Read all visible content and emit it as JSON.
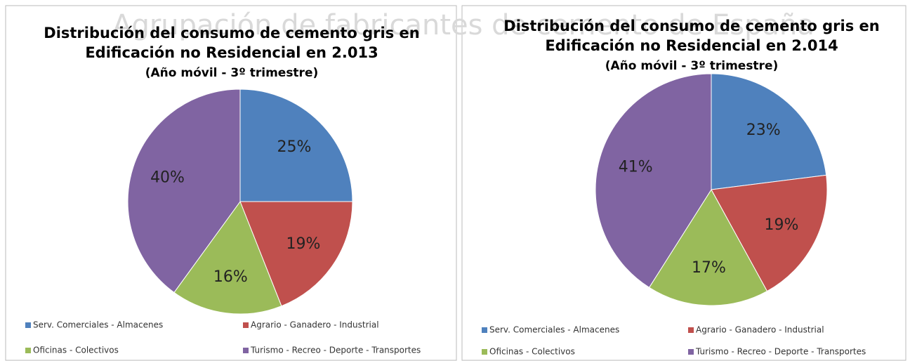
{
  "watermark": "Agrupación de fabricantes de cemento de España",
  "chart_data": [
    {
      "type": "pie",
      "title": [
        "Distribución del consumo de cemento gris en",
        "Edificación no Residencial en 2.013"
      ],
      "subtitle": "(Año móvil - 3º trimestre)",
      "categories": [
        "Serv. Comerciales - Almacenes",
        "Agrario - Ganadero - Industrial",
        "Oficinas - Colectivos",
        "Turismo - Recreo - Deporte - Transportes"
      ],
      "values": [
        25,
        19,
        16,
        40
      ],
      "value_labels": [
        "25%",
        "19%",
        "16%",
        "40%"
      ],
      "colors": [
        "#4f81bd",
        "#c0504d",
        "#9bbb59",
        "#8064a2"
      ]
    },
    {
      "type": "pie",
      "title": [
        "Distribución del consumo de cemento gris en",
        "Edificación no Residencial en 2.014"
      ],
      "subtitle": "(Año móvil - 3º trimestre)",
      "categories": [
        "Serv. Comerciales - Almacenes",
        "Agrario - Ganadero - Industrial",
        "Oficinas - Colectivos",
        "Turismo - Recreo - Deporte - Transportes"
      ],
      "values": [
        23,
        19,
        17,
        41
      ],
      "value_labels": [
        "23%",
        "19%",
        "17%",
        "41%"
      ],
      "colors": [
        "#4f81bd",
        "#c0504d",
        "#9bbb59",
        "#8064a2"
      ]
    }
  ]
}
